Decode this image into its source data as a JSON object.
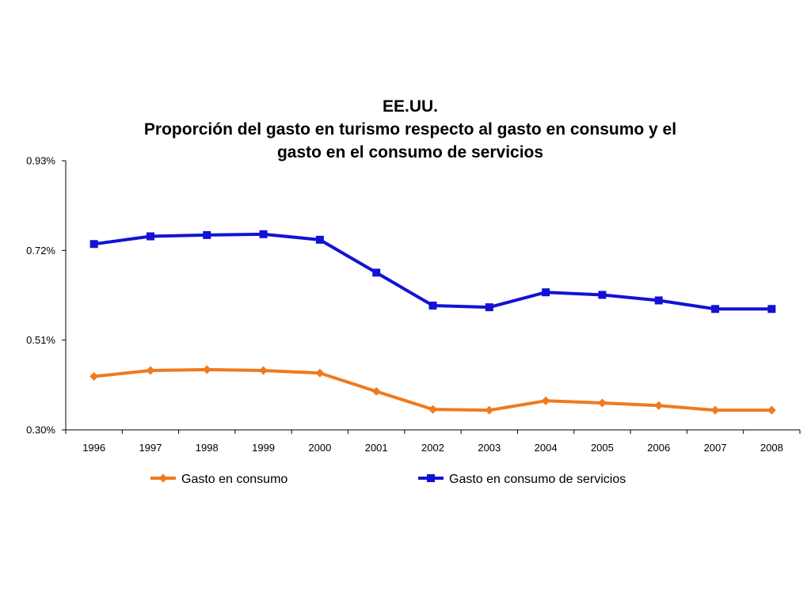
{
  "chart_data": {
    "type": "line",
    "title_lines": [
      "EE.UU.",
      "Proporción del gasto en turismo respecto al gasto en consumo y el",
      "gasto en el consumo de servicios"
    ],
    "xlabel": "",
    "ylabel": "",
    "categories": [
      "1996",
      "1997",
      "1998",
      "1999",
      "2000",
      "2001",
      "2002",
      "2003",
      "2004",
      "2005",
      "2006",
      "2007",
      "2008"
    ],
    "y_ticks": [
      {
        "value": 0.3,
        "label": "0.30%"
      },
      {
        "value": 0.51,
        "label": "0.51%"
      },
      {
        "value": 0.72,
        "label": "0.72%"
      },
      {
        "value": 0.93,
        "label": "0.93%"
      }
    ],
    "ylim": [
      0.3,
      0.93
    ],
    "grid": false,
    "legend_position": "bottom",
    "series": [
      {
        "name": "Gasto en consumo",
        "color": "#F07A1E",
        "marker": "diamond",
        "values": [
          0.425,
          0.439,
          0.441,
          0.439,
          0.433,
          0.39,
          0.348,
          0.346,
          0.368,
          0.363,
          0.357,
          0.346,
          0.346
        ]
      },
      {
        "name": "Gasto en consumo de servicios",
        "color": "#1212D6",
        "marker": "square",
        "values": [
          0.735,
          0.753,
          0.756,
          0.758,
          0.745,
          0.668,
          0.591,
          0.587,
          0.622,
          0.616,
          0.603,
          0.583,
          0.583
        ]
      }
    ]
  }
}
